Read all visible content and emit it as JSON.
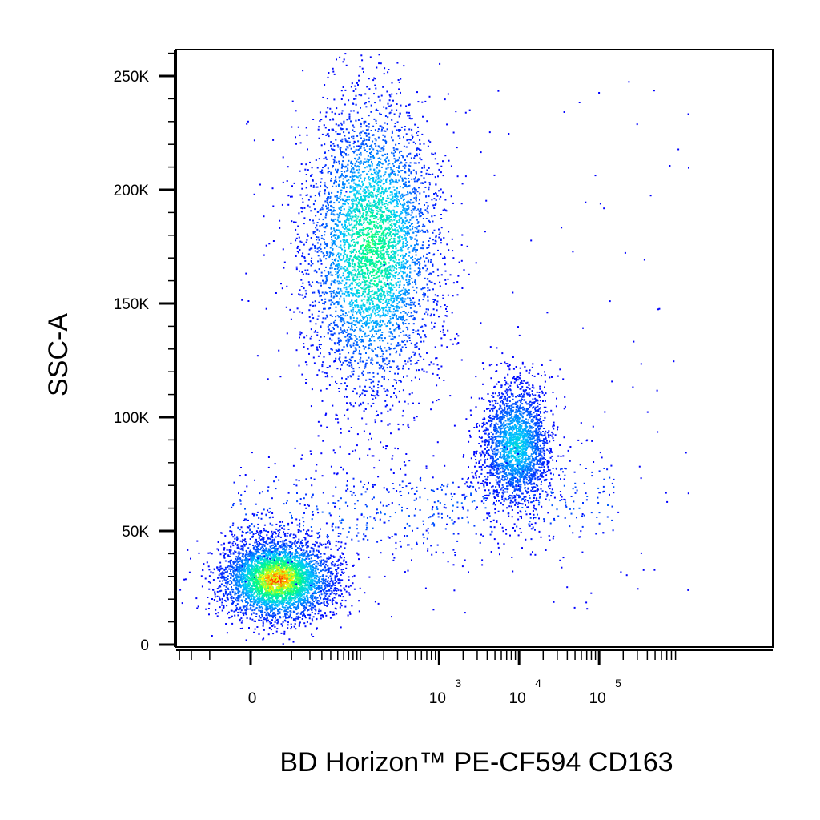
{
  "chart_data": {
    "type": "scatter",
    "subtype": "flow-cytometry-density-dot-plot",
    "xlabel": "BD Horizon™ PE-CF594 CD163",
    "ylabel": "SSC-A",
    "x_scale": "biexponential",
    "y_scale": "linear",
    "ylim": [
      0,
      262144
    ],
    "y_ticks": [
      {
        "value": 0,
        "label": "0"
      },
      {
        "value": 50000,
        "label": "50K"
      },
      {
        "value": 100000,
        "label": "100K"
      },
      {
        "value": 150000,
        "label": "150K"
      },
      {
        "value": 200000,
        "label": "200K"
      },
      {
        "value": 250000,
        "label": "250K"
      }
    ],
    "x_ticks": [
      {
        "value": 0,
        "label": "0",
        "sup": ""
      },
      {
        "value": 1000,
        "label": "10",
        "sup": "3"
      },
      {
        "value": 10000,
        "label": "10",
        "sup": "4"
      },
      {
        "value": 100000,
        "label": "10",
        "sup": "5"
      }
    ],
    "color_scale": [
      "#0000ff",
      "#00c8ff",
      "#00ff80",
      "#ffff00",
      "#ff0000"
    ],
    "grid": false,
    "populations": [
      {
        "x_center": 5,
        "y_center": 29000,
        "x_spread": 0.35,
        "y_spread": 9000,
        "count": 4200,
        "peak": "red"
      },
      {
        "x_center": 140,
        "y_center": 175000,
        "x_spread": 0.42,
        "y_spread": 33000,
        "count": 4600,
        "peak": "green"
      },
      {
        "x_center": 9000,
        "y_center": 88000,
        "x_spread": 0.22,
        "y_spread": 14000,
        "count": 2300,
        "peak": "cyan"
      },
      {
        "x_center": 600,
        "y_center": 60000,
        "x_spread": 0.9,
        "y_spread": 12000,
        "count": 700,
        "peak": "blue"
      }
    ]
  }
}
